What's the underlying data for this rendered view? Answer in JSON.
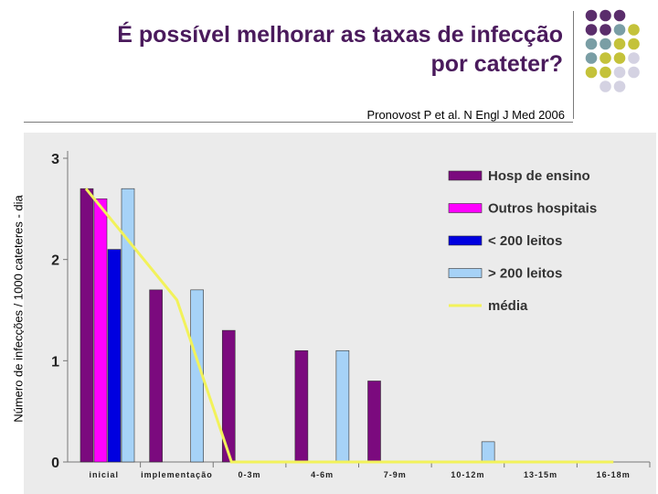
{
  "title_line1": "É possível melhorar as taxas de infecção",
  "title_line2": "por cateter?",
  "citation": "Pronovost P et al. N Engl J Med 2006",
  "chart_data": {
    "type": "bar",
    "title": "",
    "xlabel": "",
    "ylabel": "Número de infecções  / 1000 cateteres - dia",
    "ylim": [
      0,
      3
    ],
    "yticks": [
      "0",
      "1",
      "2",
      "3"
    ],
    "categories": [
      "inicial",
      "implementação",
      "0-3m",
      "4-6m",
      "7-9m",
      "10-12m",
      "13-15m",
      "16-18m"
    ],
    "series": [
      {
        "name": "Hosp de ensino",
        "color": "#7b0a7e",
        "values": [
          2.7,
          1.7,
          1.3,
          1.1,
          0.8,
          null,
          null,
          null
        ]
      },
      {
        "name": "Outros hospitais",
        "color": "#ff00ff",
        "values": [
          2.6,
          null,
          null,
          null,
          null,
          null,
          null,
          null
        ]
      },
      {
        "name": "< 200 leitos",
        "color": "#0000e0",
        "values": [
          2.1,
          null,
          null,
          null,
          null,
          null,
          null,
          null
        ]
      },
      {
        "name": "> 200 leitos",
        "color": "#a6d2f7",
        "values": [
          2.7,
          1.7,
          null,
          1.1,
          null,
          0.2,
          null,
          null
        ]
      }
    ],
    "line": {
      "name": "média",
      "color": "#f2f25a",
      "values": [
        2.7,
        1.6,
        0,
        0,
        0,
        0,
        0,
        0
      ]
    },
    "legend_position": "top-right"
  },
  "dot_colors": {
    "purple": "#5a2d6b",
    "teal": "#7a9ea5",
    "olive": "#c4c23a",
    "lavender": "#d4d2e2"
  }
}
